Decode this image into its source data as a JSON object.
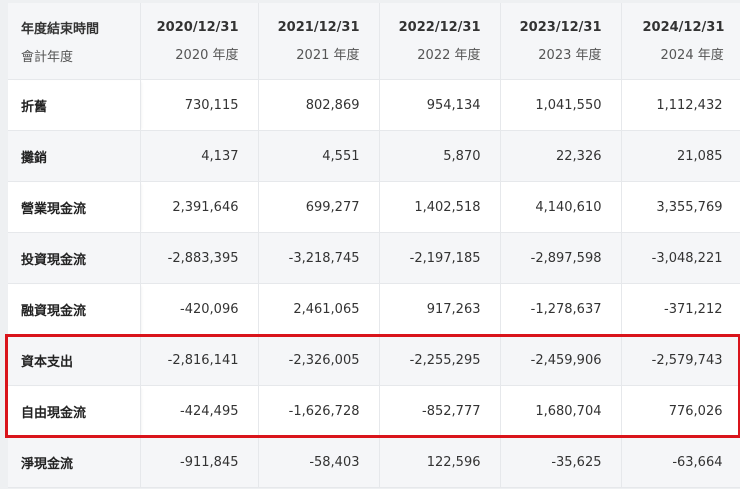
{
  "header": {
    "label_top": "年度結束時間",
    "label_bottom": "會計年度",
    "columns": [
      {
        "date": "2020/12/31",
        "fy": "2020 年度"
      },
      {
        "date": "2021/12/31",
        "fy": "2021 年度"
      },
      {
        "date": "2022/12/31",
        "fy": "2022 年度"
      },
      {
        "date": "2023/12/31",
        "fy": "2023 年度"
      },
      {
        "date": "2024/12/31",
        "fy": "2024 年度"
      }
    ]
  },
  "rows": [
    {
      "label": "折舊",
      "values": [
        "730,115",
        "802,869",
        "954,134",
        "1,041,550",
        "1,112,432"
      ]
    },
    {
      "label": "攤銷",
      "values": [
        "4,137",
        "4,551",
        "5,870",
        "22,326",
        "21,085"
      ]
    },
    {
      "label": "營業現金流",
      "values": [
        "2,391,646",
        "699,277",
        "1,402,518",
        "4,140,610",
        "3,355,769"
      ]
    },
    {
      "label": "投資現金流",
      "values": [
        "-2,883,395",
        "-3,218,745",
        "-2,197,185",
        "-2,897,598",
        "-3,048,221"
      ]
    },
    {
      "label": "融資現金流",
      "values": [
        "-420,096",
        "2,461,065",
        "917,263",
        "-1,278,637",
        "-371,212"
      ]
    },
    {
      "label": "資本支出",
      "values": [
        "-2,816,141",
        "-2,326,005",
        "-2,255,295",
        "-2,459,906",
        "-2,579,743"
      ]
    },
    {
      "label": "自由現金流",
      "values": [
        "-424,495",
        "-1,626,728",
        "-852,777",
        "1,680,704",
        "776,026"
      ]
    },
    {
      "label": "淨現金流",
      "values": [
        "-911,845",
        "-58,403",
        "122,596",
        "-35,625",
        "-63,664"
      ]
    }
  ],
  "highlight": {
    "color": "#d9141b"
  }
}
